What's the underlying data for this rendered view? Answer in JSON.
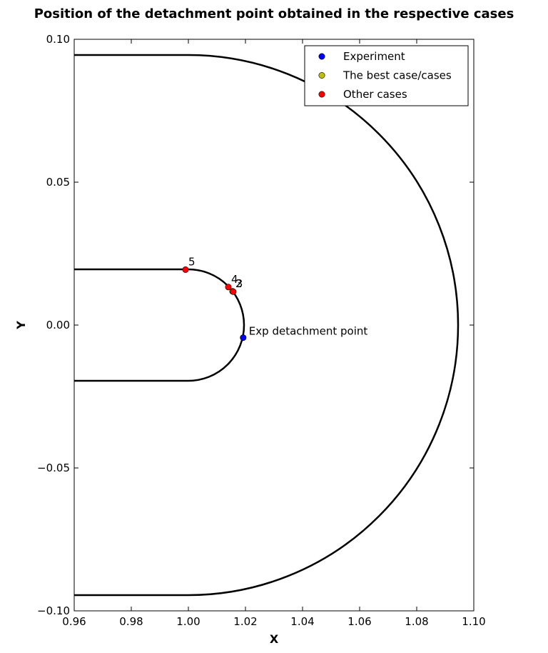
{
  "chart_data": {
    "type": "scatter",
    "title": "Position of the detachment point obtained in the respective cases",
    "xlabel": "X",
    "ylabel": "Y",
    "xlim": [
      0.96,
      1.1
    ],
    "ylim": [
      -0.1,
      0.1
    ],
    "xticks": [
      "0.96",
      "0.98",
      "1.00",
      "1.02",
      "1.04",
      "1.06",
      "1.08",
      "1.10"
    ],
    "yticks": [
      "0.10",
      "0.05",
      "0.00",
      "−0.05",
      "−0.10"
    ],
    "xtick_values": [
      0.96,
      0.98,
      1.0,
      1.02,
      1.04,
      1.06,
      1.08,
      1.1
    ],
    "ytick_values": [
      0.1,
      0.05,
      0.0,
      -0.05,
      -0.1
    ],
    "grid": false,
    "legend_position": "top-right",
    "legend": [
      {
        "label": "Experiment",
        "color": "#0000ff"
      },
      {
        "label": "The best case/cases",
        "color": "#bfbf00"
      },
      {
        "label": "Other cases",
        "color": "#ff0000"
      }
    ],
    "geometry": {
      "inner_radius": 0.0195,
      "outer_radius": 0.0945,
      "center": [
        1.0,
        0.0
      ],
      "line_color": "#000000"
    },
    "series": [
      {
        "name": "Experiment",
        "color": "#0000ff",
        "points": [
          {
            "x": 1.0192,
            "y": -0.0044,
            "label": "Exp detachment point"
          }
        ]
      },
      {
        "name": "The best case/cases",
        "color": "#bfbf00",
        "points": [
          {
            "x": 1.0155,
            "y": 0.0118,
            "label": "2"
          }
        ]
      },
      {
        "name": "Other cases",
        "color": "#ff0000",
        "points": [
          {
            "x": 1.014,
            "y": 0.0133,
            "label": "4"
          },
          {
            "x": 1.0157,
            "y": 0.0117,
            "label": "3"
          },
          {
            "x": 0.999,
            "y": 0.0194,
            "label": "5"
          }
        ]
      }
    ]
  }
}
